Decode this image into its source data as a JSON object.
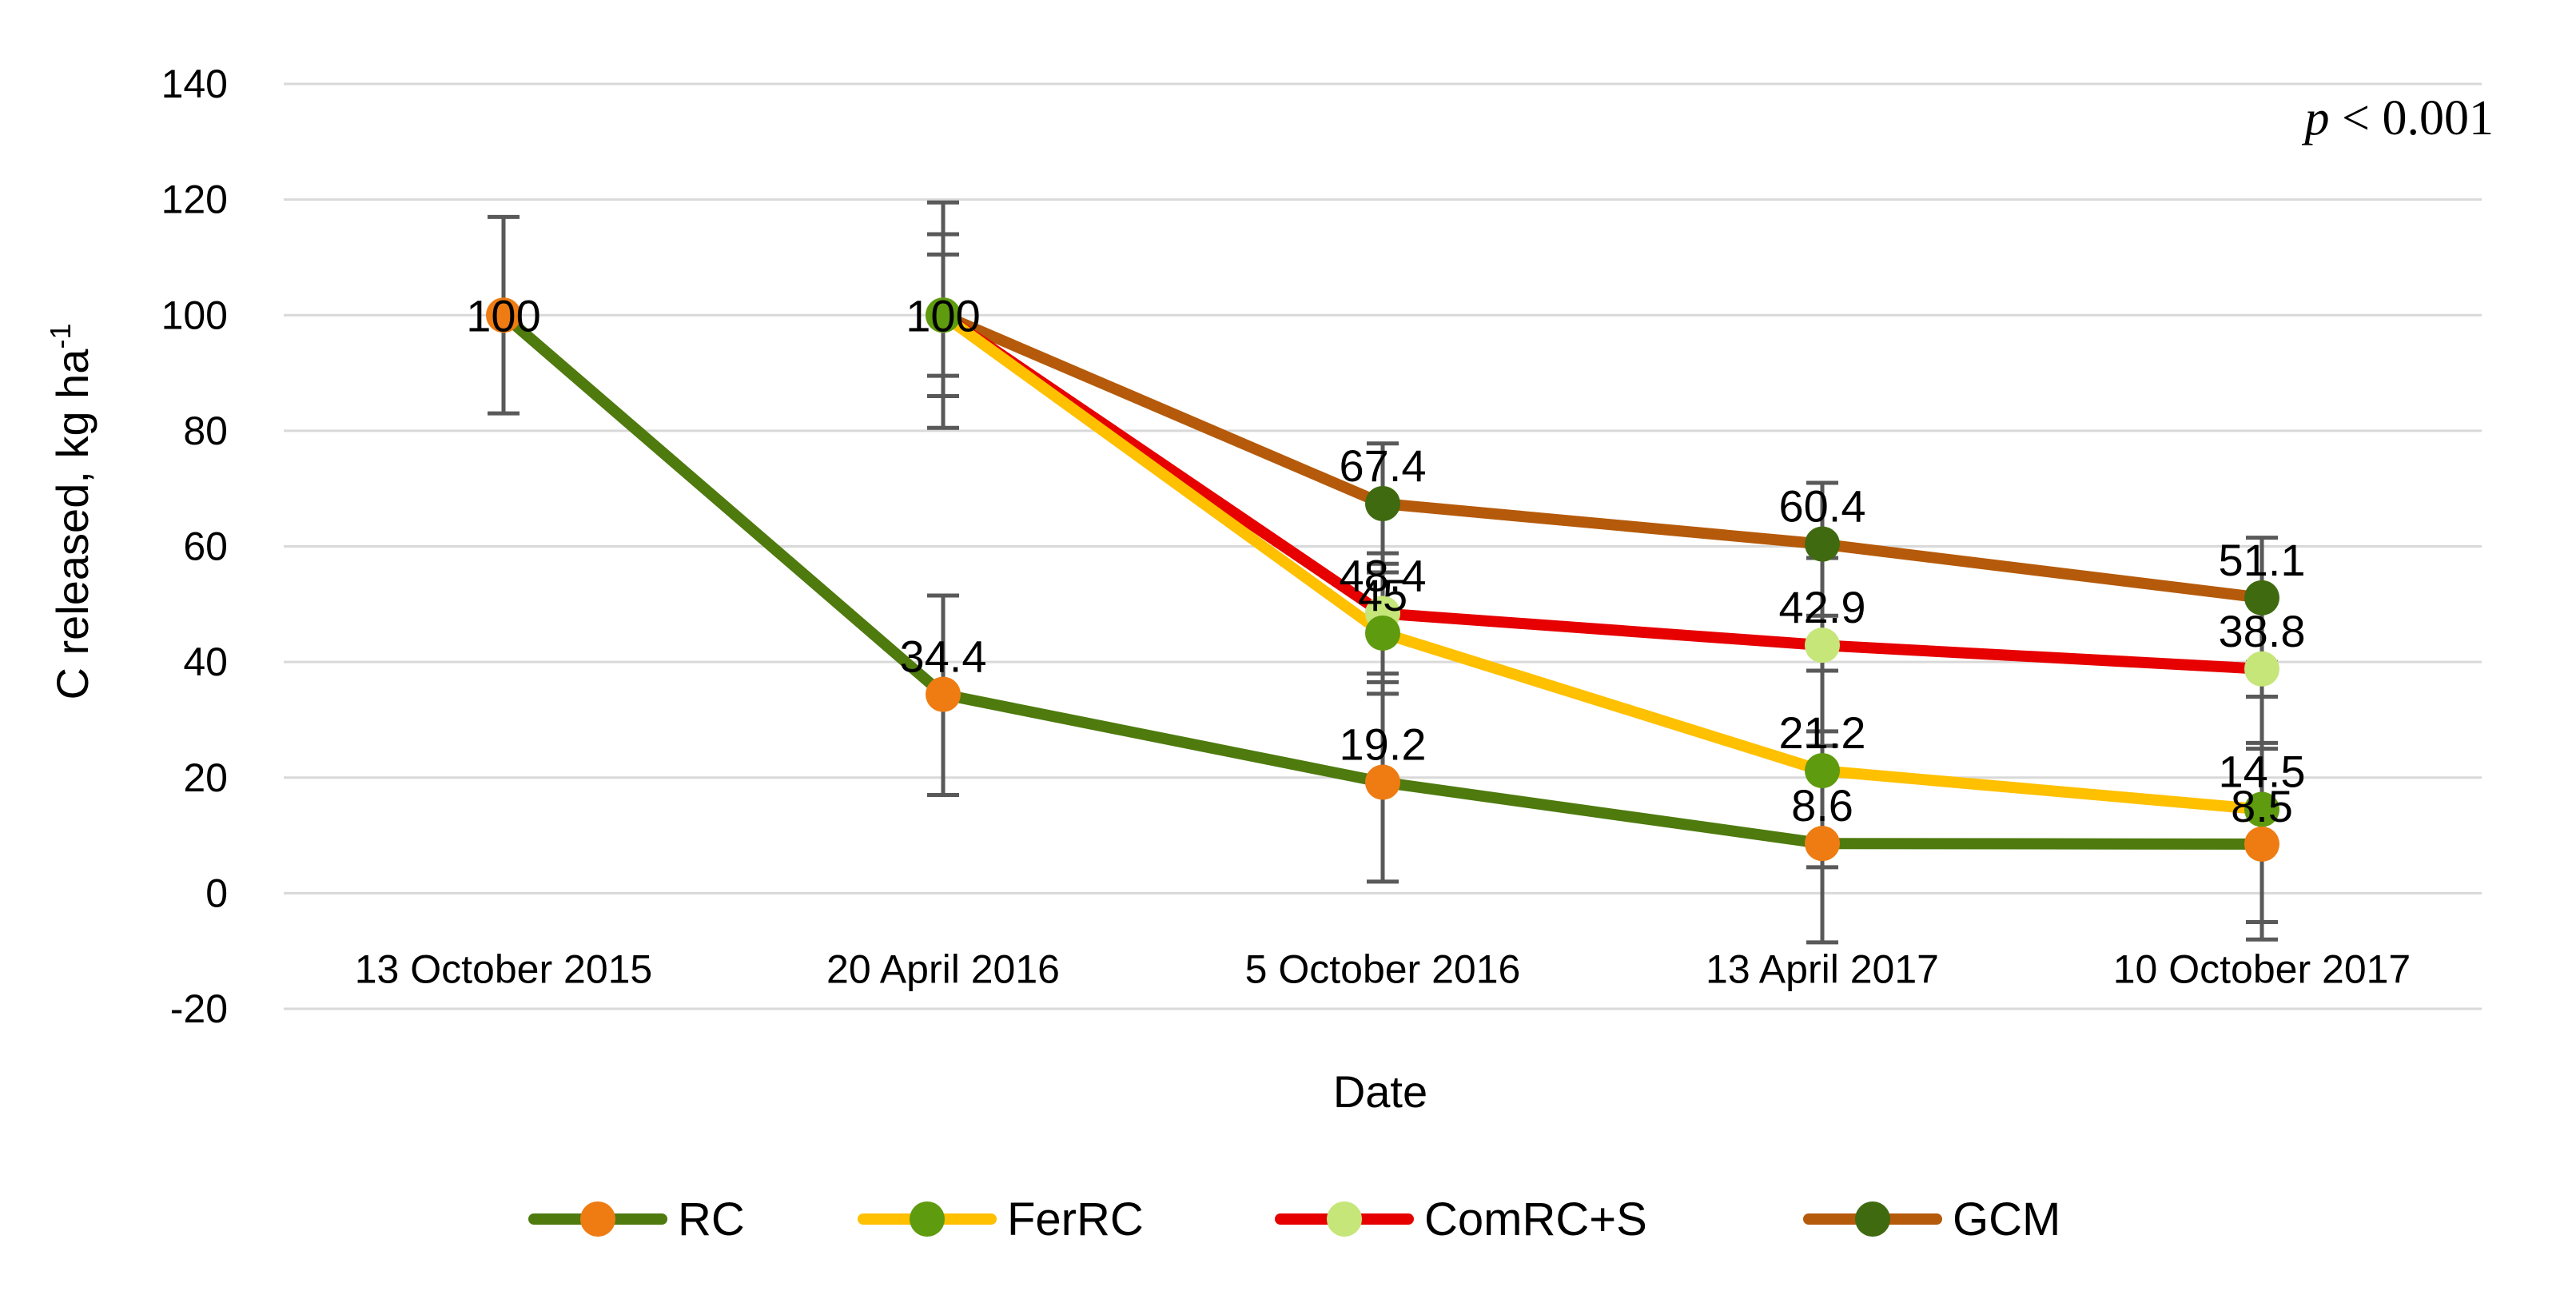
{
  "chart_data": {
    "type": "line",
    "categories": [
      "13 October 2015",
      "20 April 2016",
      "5 October 2016",
      "13 April 2017",
      "10 October 2017"
    ],
    "xlabel": "Date",
    "ylabel": {
      "text": "C released, kg ha",
      "sup": "-1"
    },
    "ylim": [
      -20,
      140
    ],
    "yticks": [
      -20,
      0,
      20,
      40,
      60,
      80,
      100,
      120,
      140
    ],
    "grid": true,
    "legend_position": "bottom",
    "annotation": {
      "italic": "p",
      "rest": " < 0.001"
    },
    "series": [
      {
        "name": "RC",
        "line_color": "#4E7A0E",
        "marker_color": "#EE7C12",
        "values": [
          100,
          34.4,
          19.2,
          8.6,
          8.5
        ],
        "labels": [
          "100",
          "34.4",
          "19.2",
          "8.6",
          "8.5"
        ],
        "error_low": [
          83,
          17,
          2,
          -8.5,
          -8
        ],
        "error_high": [
          117,
          51.5,
          36.5,
          25.5,
          25
        ]
      },
      {
        "name": "FerRC",
        "line_color": "#FFC000",
        "marker_color": "#5E9B0E",
        "values": [
          null,
          100,
          45,
          21.2,
          14.5
        ],
        "labels": [
          "",
          "",
          "45",
          "21.2",
          "14.5"
        ],
        "error_low": [
          null,
          80.5,
          34.5,
          4.5,
          -5
        ],
        "error_high": [
          null,
          119.5,
          55.5,
          38.5,
          34
        ]
      },
      {
        "name": "ComRC+S",
        "line_color": "#E60000",
        "marker_color": "#C6E67A",
        "values": [
          null,
          100,
          48.4,
          42.9,
          38.8
        ],
        "labels": [
          "",
          "",
          "48.4",
          "42.9",
          "38.8"
        ],
        "error_low": [
          null,
          86,
          38,
          28,
          26
        ],
        "error_high": [
          null,
          114,
          58.8,
          58,
          51.5
        ]
      },
      {
        "name": "GCM",
        "line_color": "#B55A0A",
        "marker_color": "#3F6A10",
        "values": [
          null,
          100,
          67.4,
          60.4,
          51.1
        ],
        "labels": [
          "",
          "100",
          "67.4",
          "60.4",
          "51.1"
        ],
        "error_low": [
          null,
          89.5,
          57,
          48,
          40
        ],
        "error_high": [
          null,
          110.5,
          77.8,
          71,
          61.5
        ]
      }
    ]
  }
}
